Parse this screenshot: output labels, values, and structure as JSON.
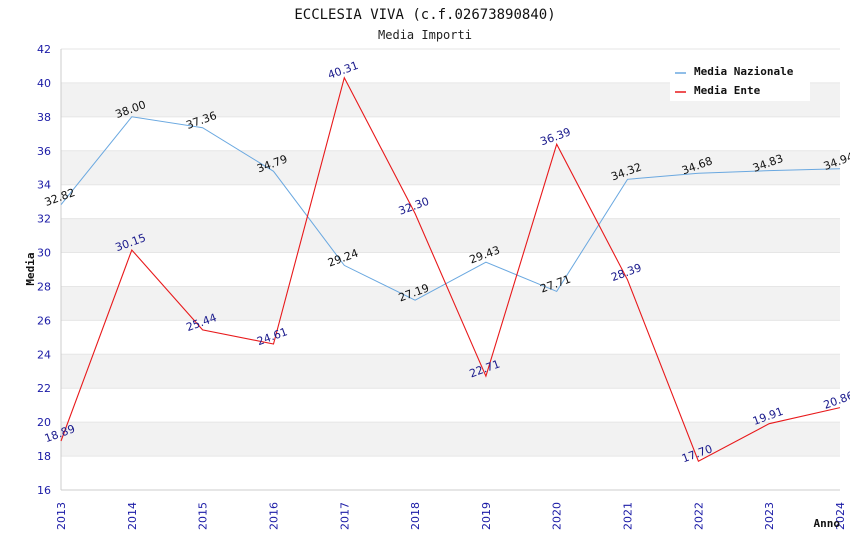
{
  "chart_data": {
    "type": "line",
    "title": "ECCLESIA VIVA (c.f.02673890840)",
    "subtitle": "Media Importi",
    "xlabel": "Anno",
    "ylabel": "Media",
    "ylim": [
      16,
      42
    ],
    "y_ticks": [
      16,
      18,
      20,
      22,
      24,
      26,
      28,
      30,
      32,
      34,
      36,
      38,
      40,
      42
    ],
    "categories": [
      "2013",
      "2014",
      "2015",
      "2016",
      "2017",
      "2018",
      "2019",
      "2020",
      "2021",
      "2022",
      "2023",
      "2024"
    ],
    "series": [
      {
        "name": "Media Nazionale",
        "color": "#6aa8e0",
        "label_color": "#111111",
        "values": [
          32.82,
          38.0,
          37.36,
          34.79,
          29.24,
          27.19,
          29.43,
          27.71,
          34.32,
          34.68,
          34.83,
          34.94
        ],
        "labels": [
          "32.82",
          "38.00",
          "37.36",
          "34.79",
          "29.24",
          "27.19",
          "29.43",
          "27.71",
          "34.32",
          "34.68",
          "34.83",
          "34.94"
        ]
      },
      {
        "name": "Media Ente",
        "color": "#e8191b",
        "label_color": "#1a1a8c",
        "values": [
          18.89,
          30.15,
          25.44,
          24.61,
          40.31,
          32.3,
          22.71,
          36.39,
          28.39,
          17.7,
          19.91,
          20.86
        ],
        "labels": [
          "18.89",
          "30.15",
          "25.44",
          "24.61",
          "40.31",
          "32.30",
          "22.71",
          "36.39",
          "28.39",
          "17.70",
          "19.91",
          "20.86"
        ]
      }
    ],
    "legend_position": "top-right",
    "grid": true
  }
}
